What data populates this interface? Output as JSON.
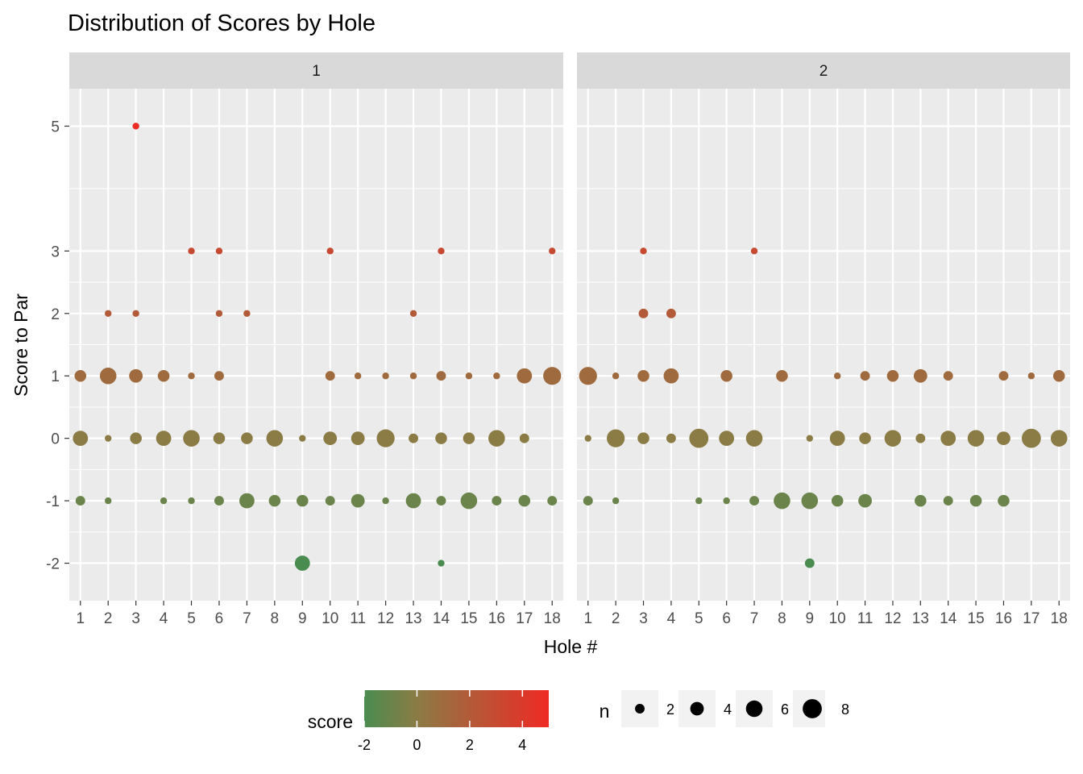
{
  "chart_data": {
    "type": "scatter",
    "title": "Distribution of Scores by Hole",
    "xlabel": "Hole #",
    "ylabel": "Score to Par",
    "facets": [
      "1",
      "2"
    ],
    "x_ticks": [
      1,
      2,
      3,
      4,
      5,
      6,
      7,
      8,
      9,
      10,
      11,
      12,
      13,
      14,
      15,
      16,
      17,
      18
    ],
    "y_ticks": [
      -2,
      -1,
      0,
      1,
      2,
      3,
      5
    ],
    "xlim": [
      0.6,
      18.4
    ],
    "ylim": [
      -2.6,
      5.6
    ],
    "grid": true,
    "legend_position": "bottom",
    "color_legend": {
      "title": "score",
      "range": [
        -2,
        5
      ],
      "ticks": [
        -2,
        0,
        2,
        4
      ],
      "low_color": "#4a8c50",
      "mid_color": "#8b7b45",
      "high_color": "#ee2a24"
    },
    "size_legend": {
      "title": "n",
      "values": [
        2,
        4,
        6,
        8
      ]
    },
    "series": [
      {
        "facet": "1",
        "points": [
          [
            1,
            1,
            3
          ],
          [
            1,
            0,
            5
          ],
          [
            1,
            -1,
            2
          ],
          [
            2,
            2,
            1
          ],
          [
            2,
            1,
            6
          ],
          [
            2,
            0,
            1
          ],
          [
            2,
            -1,
            1
          ],
          [
            3,
            5,
            1
          ],
          [
            3,
            2,
            1
          ],
          [
            3,
            1,
            4
          ],
          [
            3,
            0,
            3
          ],
          [
            4,
            1,
            3
          ],
          [
            4,
            0,
            5
          ],
          [
            4,
            -1,
            1
          ],
          [
            5,
            3,
            1
          ],
          [
            5,
            1,
            1
          ],
          [
            5,
            0,
            6
          ],
          [
            5,
            -1,
            1
          ],
          [
            6,
            3,
            1
          ],
          [
            6,
            2,
            1
          ],
          [
            6,
            1,
            2
          ],
          [
            6,
            0,
            3
          ],
          [
            6,
            -1,
            2
          ],
          [
            7,
            2,
            1
          ],
          [
            7,
            0,
            3
          ],
          [
            7,
            -1,
            5
          ],
          [
            8,
            0,
            6
          ],
          [
            8,
            -1,
            3
          ],
          [
            9,
            0,
            1
          ],
          [
            9,
            -1,
            3
          ],
          [
            9,
            -2,
            5
          ],
          [
            10,
            3,
            1
          ],
          [
            10,
            1,
            2
          ],
          [
            10,
            0,
            4
          ],
          [
            10,
            -1,
            2
          ],
          [
            11,
            1,
            1
          ],
          [
            11,
            0,
            4
          ],
          [
            11,
            -1,
            4
          ],
          [
            12,
            1,
            1
          ],
          [
            12,
            0,
            7
          ],
          [
            12,
            -1,
            1
          ],
          [
            13,
            2,
            1
          ],
          [
            13,
            1,
            1
          ],
          [
            13,
            0,
            2
          ],
          [
            13,
            -1,
            5
          ],
          [
            14,
            3,
            1
          ],
          [
            14,
            1,
            2
          ],
          [
            14,
            0,
            3
          ],
          [
            14,
            -1,
            2
          ],
          [
            14,
            -2,
            1
          ],
          [
            15,
            1,
            1
          ],
          [
            15,
            0,
            3
          ],
          [
            15,
            -1,
            6
          ],
          [
            16,
            1,
            1
          ],
          [
            16,
            0,
            6
          ],
          [
            16,
            -1,
            2
          ],
          [
            17,
            1,
            5
          ],
          [
            17,
            0,
            2
          ],
          [
            17,
            -1,
            3
          ],
          [
            18,
            3,
            1
          ],
          [
            18,
            1,
            7
          ],
          [
            18,
            -1,
            2
          ]
        ]
      },
      {
        "facet": "2",
        "points": [
          [
            1,
            1,
            7
          ],
          [
            1,
            0,
            1
          ],
          [
            1,
            -1,
            2
          ],
          [
            2,
            1,
            1
          ],
          [
            2,
            0,
            7
          ],
          [
            2,
            -1,
            1
          ],
          [
            3,
            3,
            1
          ],
          [
            3,
            2,
            2
          ],
          [
            3,
            1,
            3
          ],
          [
            3,
            0,
            3
          ],
          [
            4,
            2,
            2
          ],
          [
            4,
            1,
            5
          ],
          [
            4,
            0,
            2
          ],
          [
            5,
            0,
            8
          ],
          [
            5,
            -1,
            1
          ],
          [
            6,
            1,
            3
          ],
          [
            6,
            0,
            5
          ],
          [
            6,
            -1,
            1
          ],
          [
            7,
            3,
            1
          ],
          [
            7,
            0,
            6
          ],
          [
            7,
            -1,
            2
          ],
          [
            8,
            1,
            3
          ],
          [
            8,
            -1,
            6
          ],
          [
            9,
            0,
            1
          ],
          [
            9,
            -1,
            6
          ],
          [
            9,
            -2,
            2
          ],
          [
            10,
            1,
            1
          ],
          [
            10,
            0,
            5
          ],
          [
            10,
            -1,
            3
          ],
          [
            11,
            1,
            2
          ],
          [
            11,
            0,
            3
          ],
          [
            11,
            -1,
            4
          ],
          [
            12,
            1,
            3
          ],
          [
            12,
            0,
            6
          ],
          [
            13,
            1,
            4
          ],
          [
            13,
            0,
            2
          ],
          [
            13,
            -1,
            3
          ],
          [
            14,
            1,
            2
          ],
          [
            14,
            0,
            5
          ],
          [
            14,
            -1,
            2
          ],
          [
            15,
            0,
            6
          ],
          [
            15,
            -1,
            3
          ],
          [
            16,
            1,
            2
          ],
          [
            16,
            0,
            4
          ],
          [
            16,
            -1,
            3
          ],
          [
            17,
            1,
            1
          ],
          [
            17,
            0,
            8
          ],
          [
            18,
            1,
            3
          ],
          [
            18,
            0,
            6
          ]
        ]
      }
    ]
  }
}
